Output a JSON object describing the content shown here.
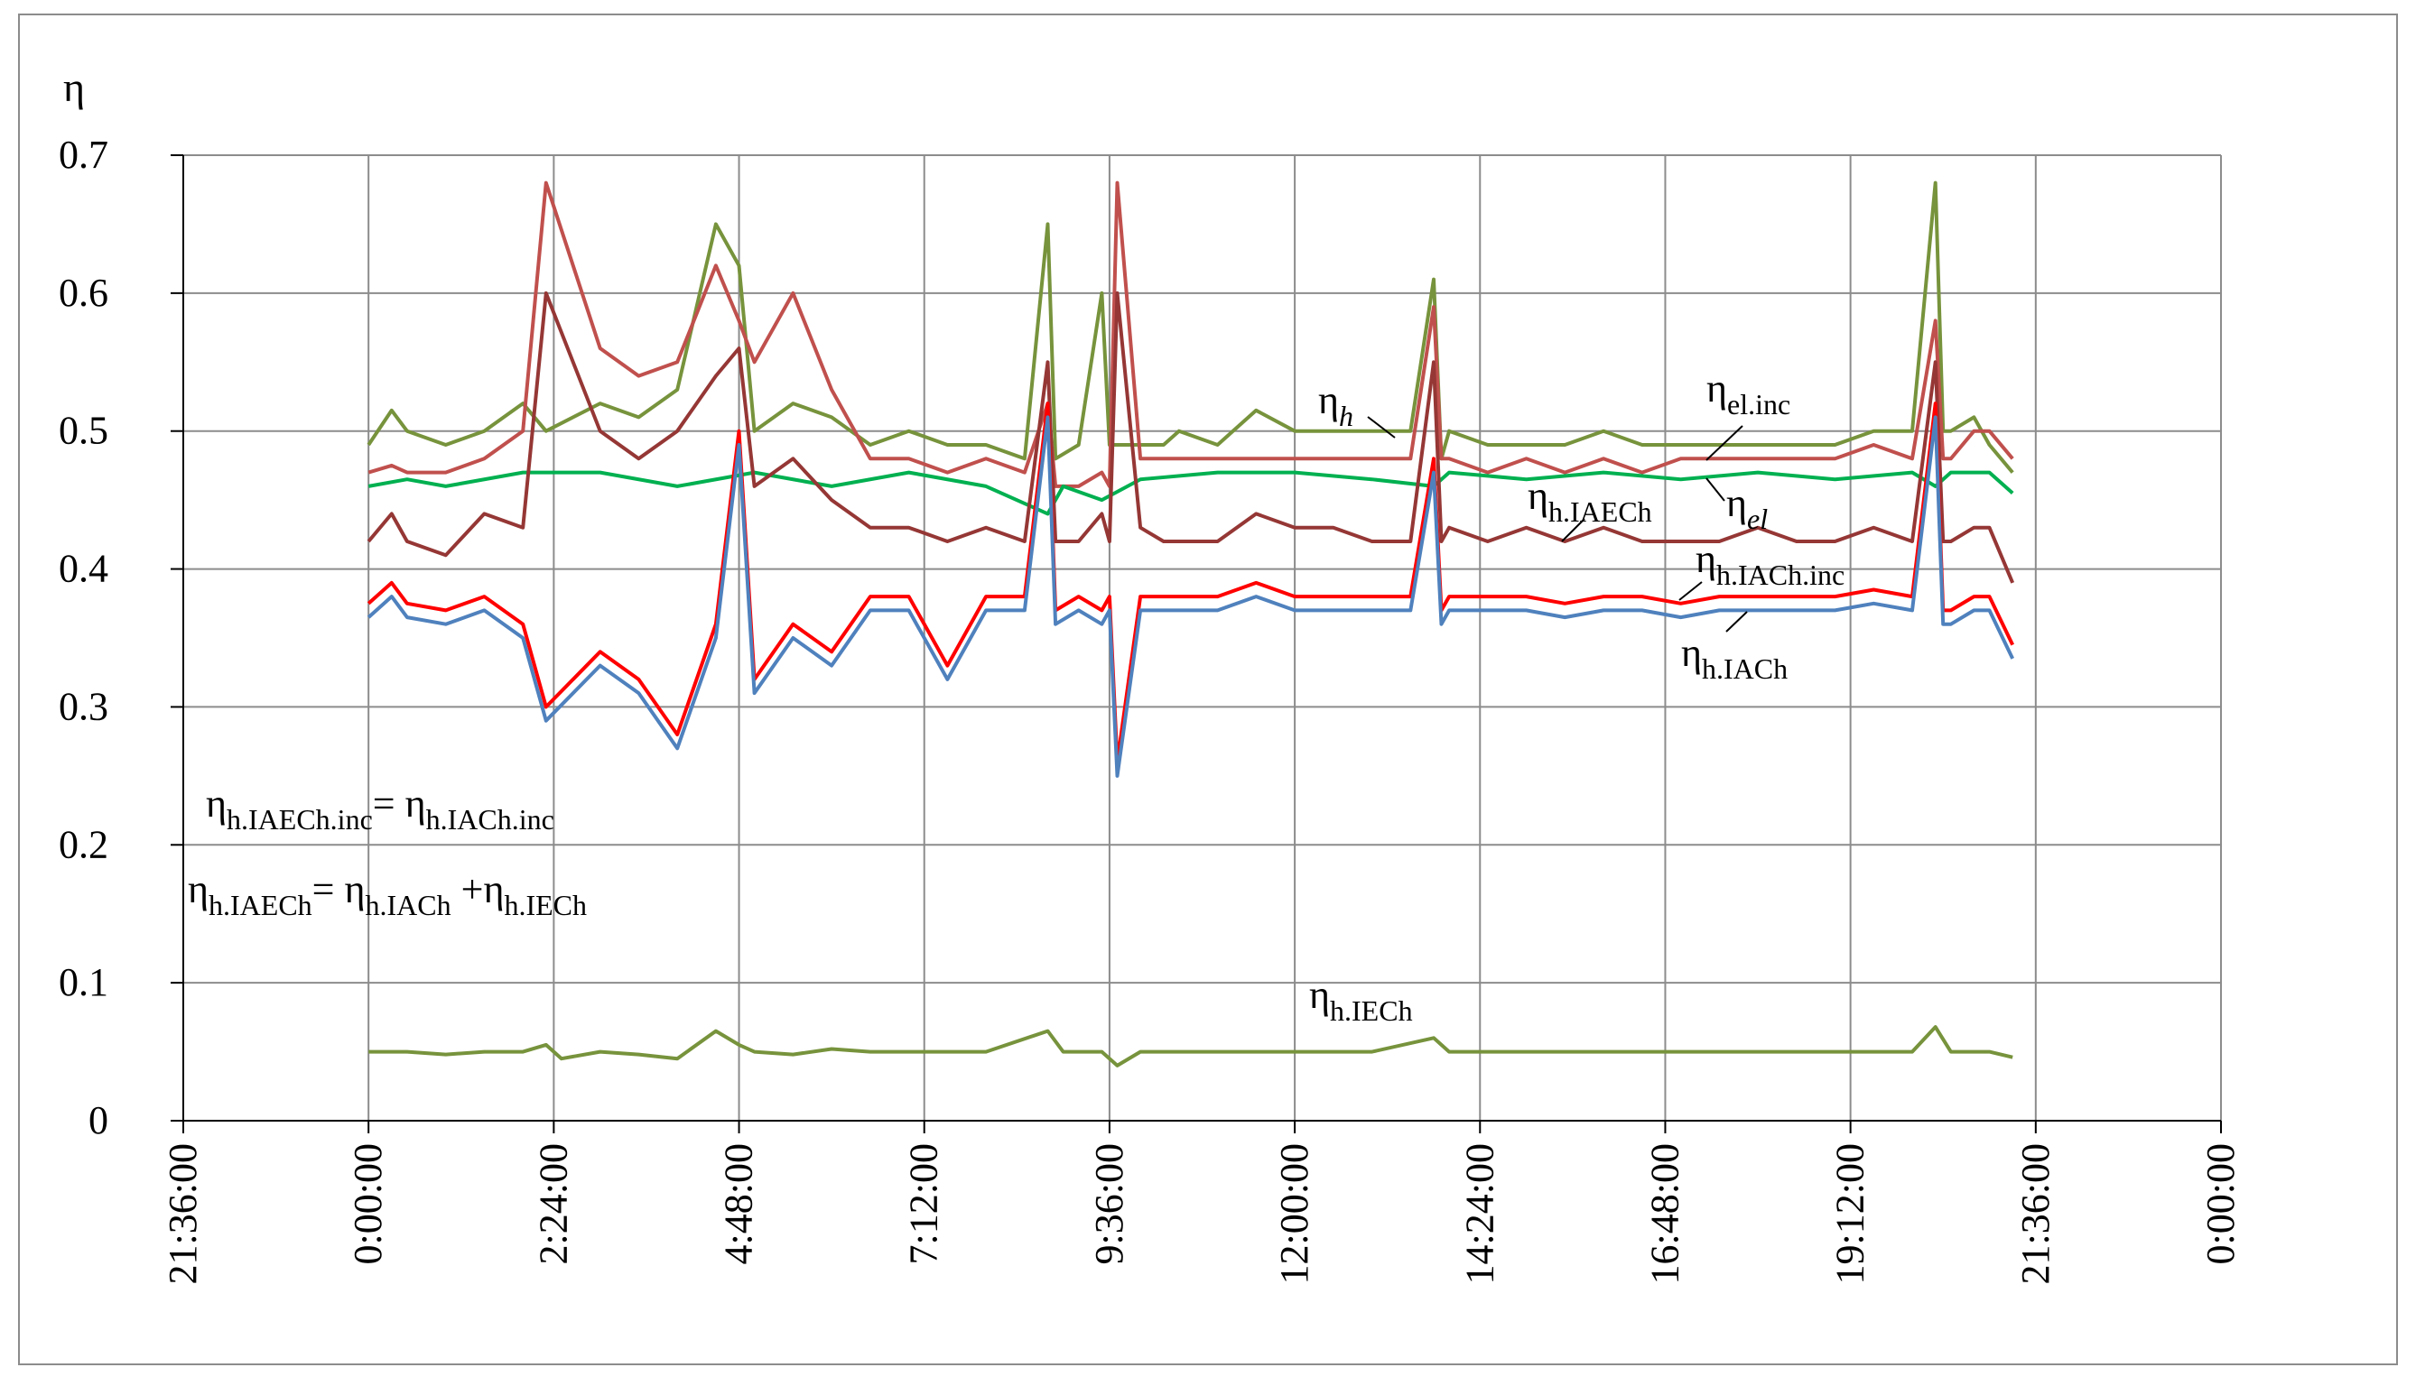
{
  "chart_data": {
    "type": "line",
    "ylabel": "η",
    "xlabel": "",
    "title": "",
    "ylim": [
      0,
      0.7
    ],
    "yticks": [
      "0",
      "0.1",
      "0.2",
      "0.3",
      "0.4",
      "0.5",
      "0.6",
      "0.7"
    ],
    "xticks": [
      "21:36:00",
      "0:00:00",
      "2:24:00",
      "4:48:00",
      "7:12:00",
      "9:36:00",
      "12:00:00",
      "14:24:00",
      "16:48:00",
      "19:12:00",
      "21:36:00",
      "0:00:00"
    ],
    "xlim_hours": [
      -2.4,
      24.0
    ],
    "grid": true,
    "series": [
      {
        "id": "eta_h",
        "color": "#77933c",
        "x": [
          0.0,
          0.3,
          0.5,
          1.0,
          1.5,
          2.0,
          2.3,
          3.0,
          3.5,
          4.0,
          4.5,
          4.8,
          5.0,
          5.5,
          6.0,
          6.5,
          7.0,
          7.5,
          8.0,
          8.5,
          8.8,
          8.9,
          9.2,
          9.5,
          9.6,
          9.7,
          10.0,
          10.3,
          10.5,
          11.0,
          11.5,
          12.0,
          12.5,
          13.0,
          13.5,
          13.8,
          13.9,
          14.0,
          14.5,
          15.0,
          15.5,
          16.0,
          16.5,
          17.0,
          17.5,
          18.0,
          18.5,
          19.0,
          19.5,
          20.0,
          20.3,
          20.4,
          20.5,
          20.8,
          21.0,
          21.3
        ],
        "y": [
          0.49,
          0.515,
          0.5,
          0.49,
          0.5,
          0.52,
          0.5,
          0.52,
          0.51,
          0.53,
          0.65,
          0.62,
          0.5,
          0.52,
          0.51,
          0.49,
          0.5,
          0.49,
          0.49,
          0.48,
          0.65,
          0.48,
          0.49,
          0.6,
          0.49,
          0.49,
          0.49,
          0.49,
          0.5,
          0.49,
          0.515,
          0.5,
          0.5,
          0.5,
          0.5,
          0.61,
          0.48,
          0.5,
          0.49,
          0.49,
          0.49,
          0.5,
          0.49,
          0.49,
          0.49,
          0.49,
          0.49,
          0.49,
          0.5,
          0.5,
          0.68,
          0.5,
          0.5,
          0.51,
          0.49,
          0.47
        ]
      },
      {
        "id": "eta_el_inc",
        "color": "#c0504d",
        "x": [
          0.0,
          0.3,
          0.5,
          1.0,
          1.5,
          2.0,
          2.3,
          3.0,
          3.5,
          4.0,
          4.5,
          4.8,
          5.0,
          5.5,
          6.0,
          6.5,
          7.0,
          7.5,
          8.0,
          8.5,
          8.8,
          8.9,
          9.2,
          9.5,
          9.6,
          9.7,
          10.0,
          10.3,
          10.5,
          11.0,
          11.5,
          12.0,
          12.5,
          13.0,
          13.5,
          13.8,
          13.9,
          14.0,
          14.5,
          15.0,
          15.5,
          16.0,
          16.5,
          17.0,
          17.5,
          18.0,
          18.5,
          19.0,
          19.5,
          20.0,
          20.3,
          20.4,
          20.5,
          20.8,
          21.0,
          21.3
        ],
        "y": [
          0.47,
          0.475,
          0.47,
          0.47,
          0.48,
          0.5,
          0.68,
          0.56,
          0.54,
          0.55,
          0.62,
          0.58,
          0.55,
          0.6,
          0.53,
          0.48,
          0.48,
          0.47,
          0.48,
          0.47,
          0.52,
          0.46,
          0.46,
          0.47,
          0.46,
          0.68,
          0.48,
          0.48,
          0.48,
          0.48,
          0.48,
          0.48,
          0.48,
          0.48,
          0.48,
          0.59,
          0.48,
          0.48,
          0.47,
          0.48,
          0.47,
          0.48,
          0.47,
          0.48,
          0.48,
          0.48,
          0.48,
          0.48,
          0.49,
          0.48,
          0.58,
          0.48,
          0.48,
          0.5,
          0.5,
          0.48
        ]
      },
      {
        "id": "eta_el",
        "color": "#00b050",
        "x": [
          0.0,
          0.5,
          1.0,
          2.0,
          3.0,
          4.0,
          5.0,
          6.0,
          7.0,
          8.0,
          8.8,
          9.0,
          9.5,
          10.0,
          11.0,
          12.0,
          13.0,
          13.8,
          14.0,
          15.0,
          16.0,
          17.0,
          18.0,
          19.0,
          20.0,
          20.3,
          20.5,
          21.0,
          21.3
        ],
        "y": [
          0.46,
          0.465,
          0.46,
          0.47,
          0.47,
          0.46,
          0.47,
          0.46,
          0.47,
          0.46,
          0.44,
          0.46,
          0.45,
          0.465,
          0.47,
          0.47,
          0.465,
          0.46,
          0.47,
          0.465,
          0.47,
          0.465,
          0.47,
          0.465,
          0.47,
          0.46,
          0.47,
          0.47,
          0.455
        ]
      },
      {
        "id": "eta_h_IAECh",
        "color": "#953735",
        "x": [
          0.0,
          0.3,
          0.5,
          1.0,
          1.5,
          2.0,
          2.3,
          3.0,
          3.5,
          4.0,
          4.5,
          4.8,
          5.0,
          5.5,
          6.0,
          6.5,
          7.0,
          7.5,
          8.0,
          8.5,
          8.8,
          8.9,
          9.2,
          9.5,
          9.6,
          9.7,
          10.0,
          10.3,
          10.5,
          11.0,
          11.5,
          12.0,
          12.5,
          13.0,
          13.5,
          13.8,
          13.9,
          14.0,
          14.5,
          15.0,
          15.5,
          16.0,
          16.5,
          17.0,
          17.5,
          18.0,
          18.5,
          19.0,
          19.5,
          20.0,
          20.3,
          20.4,
          20.5,
          20.8,
          21.0,
          21.3
        ],
        "y": [
          0.42,
          0.44,
          0.42,
          0.41,
          0.44,
          0.43,
          0.6,
          0.5,
          0.48,
          0.5,
          0.54,
          0.56,
          0.46,
          0.48,
          0.45,
          0.43,
          0.43,
          0.42,
          0.43,
          0.42,
          0.55,
          0.42,
          0.42,
          0.44,
          0.42,
          0.6,
          0.43,
          0.42,
          0.42,
          0.42,
          0.44,
          0.43,
          0.43,
          0.42,
          0.42,
          0.55,
          0.42,
          0.43,
          0.42,
          0.43,
          0.42,
          0.43,
          0.42,
          0.42,
          0.42,
          0.43,
          0.42,
          0.42,
          0.43,
          0.42,
          0.55,
          0.42,
          0.42,
          0.43,
          0.43,
          0.39
        ]
      },
      {
        "id": "eta_h_IACh_inc",
        "color": "#ff0000",
        "x": [
          0.0,
          0.3,
          0.5,
          1.0,
          1.5,
          2.0,
          2.3,
          3.0,
          3.5,
          4.0,
          4.5,
          4.8,
          5.0,
          5.5,
          6.0,
          6.5,
          7.0,
          7.5,
          8.0,
          8.5,
          8.8,
          8.9,
          9.2,
          9.5,
          9.6,
          9.7,
          10.0,
          10.3,
          10.5,
          11.0,
          11.5,
          12.0,
          12.5,
          13.0,
          13.5,
          13.8,
          13.9,
          14.0,
          14.5,
          15.0,
          15.5,
          16.0,
          16.5,
          17.0,
          17.5,
          18.0,
          18.5,
          19.0,
          19.5,
          20.0,
          20.3,
          20.4,
          20.5,
          20.8,
          21.0,
          21.3
        ],
        "y": [
          0.375,
          0.39,
          0.375,
          0.37,
          0.38,
          0.36,
          0.3,
          0.34,
          0.32,
          0.28,
          0.36,
          0.5,
          0.32,
          0.36,
          0.34,
          0.38,
          0.38,
          0.33,
          0.38,
          0.38,
          0.52,
          0.37,
          0.38,
          0.37,
          0.38,
          0.26,
          0.38,
          0.38,
          0.38,
          0.38,
          0.39,
          0.38,
          0.38,
          0.38,
          0.38,
          0.48,
          0.37,
          0.38,
          0.38,
          0.38,
          0.375,
          0.38,
          0.38,
          0.375,
          0.38,
          0.38,
          0.38,
          0.38,
          0.385,
          0.38,
          0.52,
          0.37,
          0.37,
          0.38,
          0.38,
          0.345
        ]
      },
      {
        "id": "eta_h_IACh",
        "color": "#4f81bd",
        "x": [
          0.0,
          0.3,
          0.5,
          1.0,
          1.5,
          2.0,
          2.3,
          3.0,
          3.5,
          4.0,
          4.5,
          4.8,
          5.0,
          5.5,
          6.0,
          6.5,
          7.0,
          7.5,
          8.0,
          8.5,
          8.8,
          8.9,
          9.2,
          9.5,
          9.6,
          9.7,
          10.0,
          10.3,
          10.5,
          11.0,
          11.5,
          12.0,
          12.5,
          13.0,
          13.5,
          13.8,
          13.9,
          14.0,
          14.5,
          15.0,
          15.5,
          16.0,
          16.5,
          17.0,
          17.5,
          18.0,
          18.5,
          19.0,
          19.5,
          20.0,
          20.3,
          20.4,
          20.5,
          20.8,
          21.0,
          21.3
        ],
        "y": [
          0.365,
          0.38,
          0.365,
          0.36,
          0.37,
          0.35,
          0.29,
          0.33,
          0.31,
          0.27,
          0.35,
          0.49,
          0.31,
          0.35,
          0.33,
          0.37,
          0.37,
          0.32,
          0.37,
          0.37,
          0.51,
          0.36,
          0.37,
          0.36,
          0.37,
          0.25,
          0.37,
          0.37,
          0.37,
          0.37,
          0.38,
          0.37,
          0.37,
          0.37,
          0.37,
          0.47,
          0.36,
          0.37,
          0.37,
          0.37,
          0.365,
          0.37,
          0.37,
          0.365,
          0.37,
          0.37,
          0.37,
          0.37,
          0.375,
          0.37,
          0.51,
          0.36,
          0.36,
          0.37,
          0.37,
          0.335
        ]
      },
      {
        "id": "eta_h_IECh",
        "color": "#77933c",
        "x": [
          0.0,
          0.5,
          1.0,
          1.5,
          2.0,
          2.3,
          2.5,
          3.0,
          3.5,
          4.0,
          4.5,
          4.8,
          5.0,
          5.5,
          6.0,
          6.5,
          7.0,
          8.0,
          8.8,
          9.0,
          9.5,
          9.7,
          10.0,
          11.0,
          12.0,
          13.0,
          13.8,
          14.0,
          15.0,
          16.0,
          17.0,
          18.0,
          19.0,
          20.0,
          20.3,
          20.5,
          21.0,
          21.3
        ],
        "y": [
          0.05,
          0.05,
          0.048,
          0.05,
          0.05,
          0.055,
          0.045,
          0.05,
          0.048,
          0.045,
          0.065,
          0.055,
          0.05,
          0.048,
          0.052,
          0.05,
          0.05,
          0.05,
          0.065,
          0.05,
          0.05,
          0.04,
          0.05,
          0.05,
          0.05,
          0.05,
          0.06,
          0.05,
          0.05,
          0.05,
          0.05,
          0.05,
          0.05,
          0.05,
          0.068,
          0.05,
          0.05,
          0.046
        ]
      }
    ],
    "annotations": {
      "eta_h": {
        "sym": "η",
        "sub": "h"
      },
      "eta_el_inc": {
        "sym": "η",
        "sub": "el.inc"
      },
      "eta_h_IAECh": {
        "sym": "η",
        "sub": "h.IAECh"
      },
      "eta_el": {
        "sym": "η",
        "sub": "el"
      },
      "eta_h_IACh_inc": {
        "sym": "η",
        "sub": "h.IACh.inc"
      },
      "eta_h_IACh": {
        "sym": "η",
        "sub": "h.IACh"
      },
      "eta_h_IECh": {
        "sym": "η",
        "sub": "h.IECh"
      },
      "formula1": {
        "sym1": "η",
        "sub1": "h.IAECh.inc",
        "op": "= ",
        "sym2": "η",
        "sub2": "h.IACh.inc"
      },
      "formula2": {
        "sym1": "η",
        "sub1": "h.IAECh",
        "op": "= ",
        "sym2": "η",
        "sub2": "h.IACh",
        "op2": " +",
        "sym3": "η",
        "sub3": "h.IECh"
      }
    }
  }
}
